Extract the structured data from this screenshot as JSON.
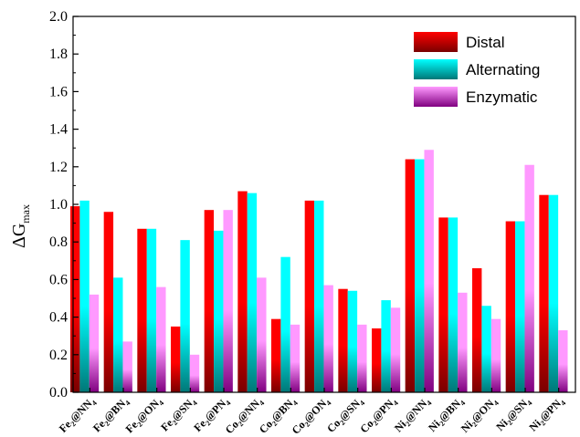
{
  "chart_data": {
    "type": "bar",
    "ylabel_main": "ΔG",
    "ylabel_sub": "max",
    "ylim": [
      0,
      2.0
    ],
    "yticks": [
      "0.0",
      "0.2",
      "0.4",
      "0.6",
      "0.8",
      "1.0",
      "1.2",
      "1.4",
      "1.6",
      "1.8",
      "2.0"
    ],
    "categories": [
      {
        "base": "Fe",
        "n1": "2",
        "mid": "@NN",
        "n2": "4"
      },
      {
        "base": "Fe",
        "n1": "2",
        "mid": "@BN",
        "n2": "4"
      },
      {
        "base": "Fe",
        "n1": "2",
        "mid": "@ON",
        "n2": "4"
      },
      {
        "base": "Fe",
        "n1": "2",
        "mid": "@SN",
        "n2": "4"
      },
      {
        "base": "Fe",
        "n1": "2",
        "mid": "@PN",
        "n2": "4"
      },
      {
        "base": "Co",
        "n1": "2",
        "mid": "@NN",
        "n2": "4"
      },
      {
        "base": "Co",
        "n1": "2",
        "mid": "@BN",
        "n2": "4"
      },
      {
        "base": "Co",
        "n1": "2",
        "mid": "@ON",
        "n2": "4"
      },
      {
        "base": "Co",
        "n1": "2",
        "mid": "@SN",
        "n2": "4"
      },
      {
        "base": "Co",
        "n1": "2",
        "mid": "@PN",
        "n2": "4"
      },
      {
        "base": "Ni",
        "n1": "2",
        "mid": "@NN",
        "n2": "4"
      },
      {
        "base": "Ni",
        "n1": "2",
        "mid": "@BN",
        "n2": "4"
      },
      {
        "base": "Ni",
        "n1": "2",
        "mid": "@ON",
        "n2": "4"
      },
      {
        "base": "Ni",
        "n1": "2",
        "mid": "@SN",
        "n2": "4"
      },
      {
        "base": "Ni",
        "n1": "2",
        "mid": "@PN",
        "n2": "4"
      }
    ],
    "series": [
      {
        "name": "Distal",
        "colors": [
          "#ff0000",
          "#7a0000"
        ],
        "values": [
          0.99,
          0.96,
          0.87,
          0.35,
          0.97,
          1.07,
          0.39,
          1.02,
          0.55,
          0.34,
          1.24,
          0.93,
          0.66,
          0.91,
          1.05
        ]
      },
      {
        "name": "Alternating",
        "colors": [
          "#00ffff",
          "#007777"
        ],
        "values": [
          1.02,
          0.61,
          0.87,
          0.81,
          0.86,
          1.06,
          0.72,
          1.02,
          0.54,
          0.49,
          1.24,
          0.93,
          0.46,
          0.91,
          1.05
        ]
      },
      {
        "name": "Enzymatic",
        "colors": [
          "#ff99ff",
          "#800080"
        ],
        "values": [
          0.52,
          0.27,
          0.56,
          0.2,
          0.97,
          0.61,
          0.36,
          0.57,
          0.36,
          0.45,
          1.29,
          0.53,
          0.39,
          1.21,
          0.33
        ]
      }
    ],
    "legend_position": "top-right",
    "grid": false
  }
}
